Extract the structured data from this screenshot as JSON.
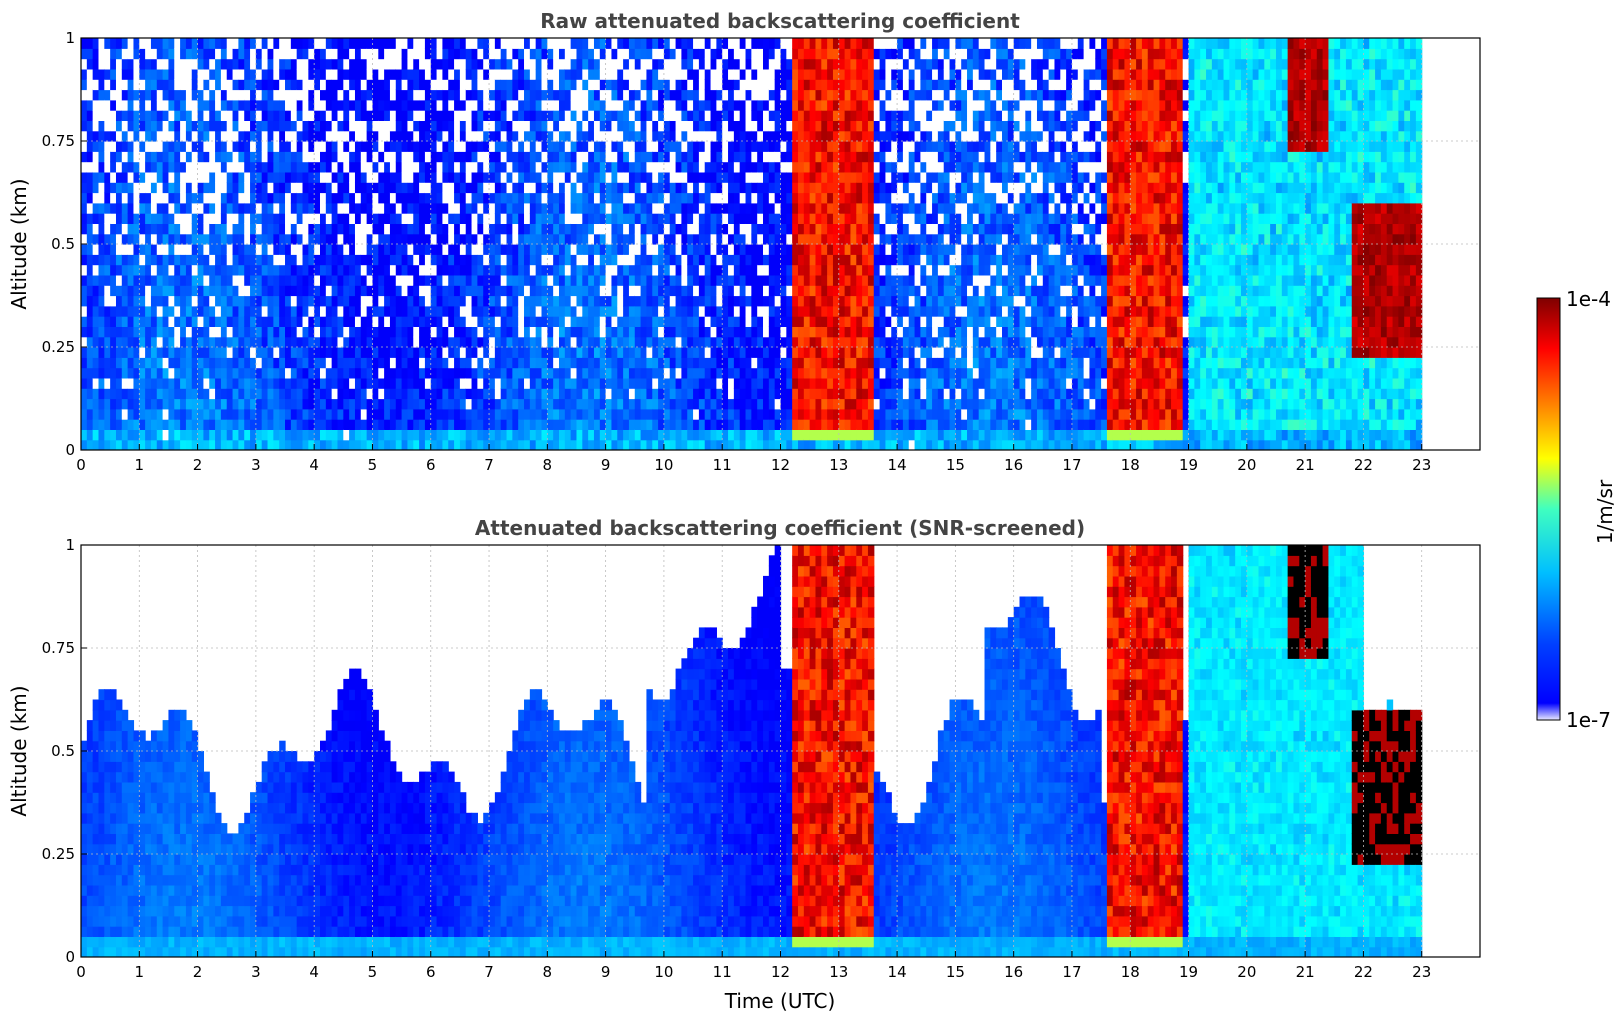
{
  "chart_data": [
    {
      "type": "heatmap",
      "title": "Raw attenuated backscattering coefficient",
      "xlabel": "",
      "ylabel": "Altitude (km)",
      "x_ticks": [
        "0",
        "1",
        "2",
        "3",
        "4",
        "5",
        "6",
        "7",
        "8",
        "9",
        "10",
        "11",
        "12",
        "13",
        "14",
        "15",
        "16",
        "17",
        "18",
        "19",
        "20",
        "21",
        "22",
        "23"
      ],
      "y_ticks": [
        "0",
        "0.25",
        "0.5",
        "0.75",
        "1"
      ],
      "xlim": [
        0,
        24
      ],
      "ylim": [
        0,
        1
      ],
      "grid": true,
      "data_end_hour": 23,
      "features": [
        {
          "x_range": [
            12.2,
            13.6
          ],
          "y_range": [
            0.02,
            1.0
          ],
          "level": "high"
        },
        {
          "x_range": [
            17.6,
            18.9
          ],
          "y_range": [
            0.02,
            1.0
          ],
          "level": "high"
        },
        {
          "x_range": [
            20.7,
            21.4
          ],
          "y_range": [
            0.72,
            1.0
          ],
          "level": "peak"
        },
        {
          "x_range": [
            21.8,
            23.0
          ],
          "y_range": [
            0.22,
            0.6
          ],
          "level": "peak"
        }
      ]
    },
    {
      "type": "heatmap",
      "title": "Attenuated backscattering coefficient (SNR-screened)",
      "xlabel": "Time (UTC)",
      "ylabel": "Altitude (km)",
      "x_ticks": [
        "0",
        "1",
        "2",
        "3",
        "4",
        "5",
        "6",
        "7",
        "8",
        "9",
        "10",
        "11",
        "12",
        "13",
        "14",
        "15",
        "16",
        "17",
        "18",
        "19",
        "20",
        "21",
        "22",
        "23"
      ],
      "y_ticks": [
        "0",
        "0.25",
        "0.5",
        "0.75",
        "1"
      ],
      "xlim": [
        0,
        24
      ],
      "ylim": [
        0,
        1
      ],
      "grid": true,
      "data_end_hour": 23,
      "features": [
        {
          "x_range": [
            12.2,
            13.6
          ],
          "y_range": [
            0.02,
            1.0
          ],
          "level": "high"
        },
        {
          "x_range": [
            17.6,
            18.9
          ],
          "y_range": [
            0.02,
            1.0
          ],
          "level": "high"
        },
        {
          "x_range": [
            20.7,
            21.4
          ],
          "y_range": [
            0.72,
            1.0
          ],
          "level": "saturated"
        },
        {
          "x_range": [
            21.8,
            23.0
          ],
          "y_range": [
            0.22,
            0.6
          ],
          "level": "saturated"
        }
      ]
    }
  ],
  "colorbar": {
    "label": "1/m/sr",
    "min_label": "1e-7",
    "max_label": "1e-4",
    "colormap": "jet",
    "low_color": "#e8e8ff",
    "high_color": "#7f0000",
    "saturated_color": "#000000"
  }
}
